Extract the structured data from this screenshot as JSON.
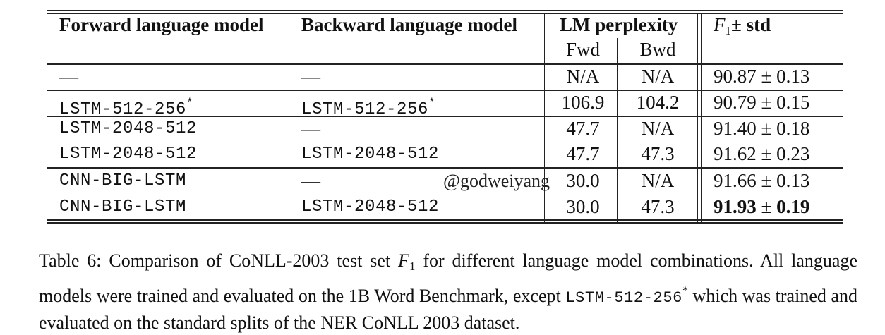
{
  "table": {
    "headers": {
      "forward": "Forward language model",
      "backward": "Backward language model",
      "perplexity": "LM perplexity",
      "fwd": "Fwd",
      "bwd": "Bwd",
      "f1_letter": "F",
      "f1_sub": "1",
      "f1_rest": "± std"
    },
    "rows": [
      {
        "forward": "—",
        "forward_mark": "",
        "backward": "—",
        "backward_mark": "",
        "fwd": "N/A",
        "bwd": "N/A",
        "f1": "90.87 ± 0.13",
        "best": false
      },
      {
        "forward": "LSTM-512-256",
        "forward_mark": "*",
        "backward": "LSTM-512-256",
        "backward_mark": "*",
        "fwd": "106.9",
        "bwd": "104.2",
        "f1": "90.79 ± 0.15",
        "best": false
      },
      {
        "forward": "LSTM-2048-512",
        "forward_mark": "",
        "backward": "—",
        "backward_mark": "",
        "fwd": "47.7",
        "bwd": "N/A",
        "f1": "91.40 ± 0.18",
        "best": false
      },
      {
        "forward": "LSTM-2048-512",
        "forward_mark": "",
        "backward": "LSTM-2048-512",
        "backward_mark": "",
        "fwd": "47.7",
        "bwd": "47.3",
        "f1": "91.62 ± 0.23",
        "best": false
      },
      {
        "forward": "CNN-BIG-LSTM",
        "forward_mark": "",
        "backward": "—",
        "backward_mark": "",
        "fwd": "30.0",
        "bwd": "N/A",
        "f1": "91.66 ± 0.13",
        "best": false
      },
      {
        "forward": "CNN-BIG-LSTM",
        "forward_mark": "",
        "backward": "LSTM-2048-512",
        "backward_mark": "",
        "fwd": "30.0",
        "bwd": "47.3",
        "f1": "91.93 ± 0.19",
        "best": true
      }
    ]
  },
  "watermark": "@godweiyang",
  "caption": {
    "part1": "Table 6: Comparison of CoNLL-2003 test set ",
    "f_letter": "F",
    "f_sub": "1",
    "part2": " for different language model combinations. All language models were trained and evaluated on the 1B Word Benchmark, except ",
    "code": "LSTM-512-256",
    "code_mark": "*",
    "part3": " which was trained and evaluated on the standard splits of the NER CoNLL 2003 dataset."
  }
}
